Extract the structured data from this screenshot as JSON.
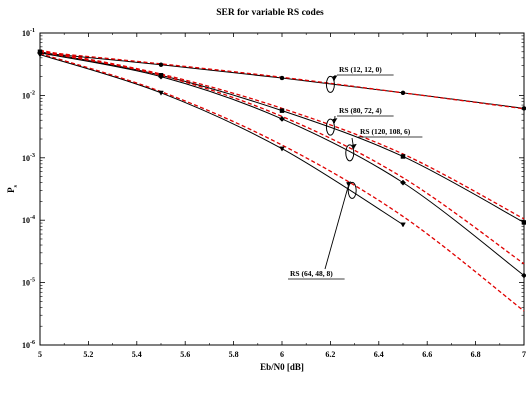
{
  "chart_data": {
    "type": "line",
    "title": "SER for variable RS codes",
    "xlabel": "Eb/N0 [dB]",
    "ylabel": "P",
    "ylabel_sub": "s",
    "xlim": [
      5,
      7
    ],
    "ylim": [
      1e-06,
      0.1
    ],
    "yscale": "log",
    "grid": false,
    "x_ticks": [
      "5",
      "5.2",
      "5.4",
      "5.6",
      "5.8",
      "6",
      "6.2",
      "6.4",
      "6.6",
      "6.8",
      "7"
    ],
    "y_ticks": [
      {
        "base": "10",
        "exp": "-1"
      },
      {
        "base": "10",
        "exp": "-2"
      },
      {
        "base": "10",
        "exp": "-3"
      },
      {
        "base": "10",
        "exp": "-4"
      },
      {
        "base": "10",
        "exp": "-5"
      },
      {
        "base": "10",
        "exp": "-6"
      }
    ],
    "series_style": {
      "simulated": {
        "color": "#000000",
        "dash": "none"
      },
      "analytic": {
        "color": "#e00000",
        "dash": "4,2.5"
      }
    },
    "series": [
      {
        "label": "RS (12, 12, 0)",
        "simulated": {
          "x": [
            5,
            5.5,
            6,
            6.5,
            7
          ],
          "y": [
            0.048,
            0.031,
            0.019,
            0.011,
            0.0062
          ],
          "marker": "circle"
        },
        "analytic": {
          "x": [
            5,
            5.5,
            6,
            6.5,
            7
          ],
          "y": [
            0.05,
            0.032,
            0.0195,
            0.011,
            0.0061
          ]
        }
      },
      {
        "label": "RS (80, 72, 4)",
        "simulated": {
          "x": [
            5,
            5.5,
            6,
            6.5,
            7
          ],
          "y": [
            0.05,
            0.021,
            0.0057,
            0.00105,
            9.2e-05
          ],
          "marker": "square"
        },
        "analytic": {
          "x": [
            5,
            5.5,
            6,
            6.5,
            7
          ],
          "y": [
            0.053,
            0.022,
            0.0062,
            0.00115,
            0.000105
          ]
        }
      },
      {
        "label": "RS (120, 108, 6)",
        "simulated": {
          "x": [
            5,
            5.5,
            6,
            6.5,
            7
          ],
          "y": [
            0.048,
            0.02,
            0.0042,
            0.0004,
            1.3e-05
          ],
          "marker": "diamond"
        },
        "analytic": {
          "x": [
            5,
            5.5,
            6,
            6.5,
            7
          ],
          "y": [
            0.05,
            0.021,
            0.0046,
            0.00048,
            2e-05
          ]
        }
      },
      {
        "label": "RS (64, 48, 8)",
        "simulated": {
          "x": [
            5,
            5.5,
            6,
            6.5
          ],
          "y": [
            0.045,
            0.011,
            0.0014,
            8.5e-05
          ],
          "marker": "triangle-down"
        },
        "analytic": {
          "x": [
            5,
            5.5,
            6,
            6.5,
            7
          ],
          "y": [
            0.047,
            0.0115,
            0.0016,
            0.000115,
            3.5e-06
          ]
        }
      }
    ],
    "annotations": [
      {
        "text": "RS (12, 12, 0)",
        "at": {
          "x": 6.2,
          "y": 0.015
        }
      },
      {
        "text": "RS (80, 72, 4)",
        "at": {
          "x": 6.2,
          "y": 0.0031
        }
      },
      {
        "text": "RS (120, 108, 6)",
        "at": {
          "x": 6.28,
          "y": 0.0012
        }
      },
      {
        "text": "RS (64, 48, 8)",
        "at": {
          "x": 6.29,
          "y": 0.0003
        }
      }
    ]
  }
}
